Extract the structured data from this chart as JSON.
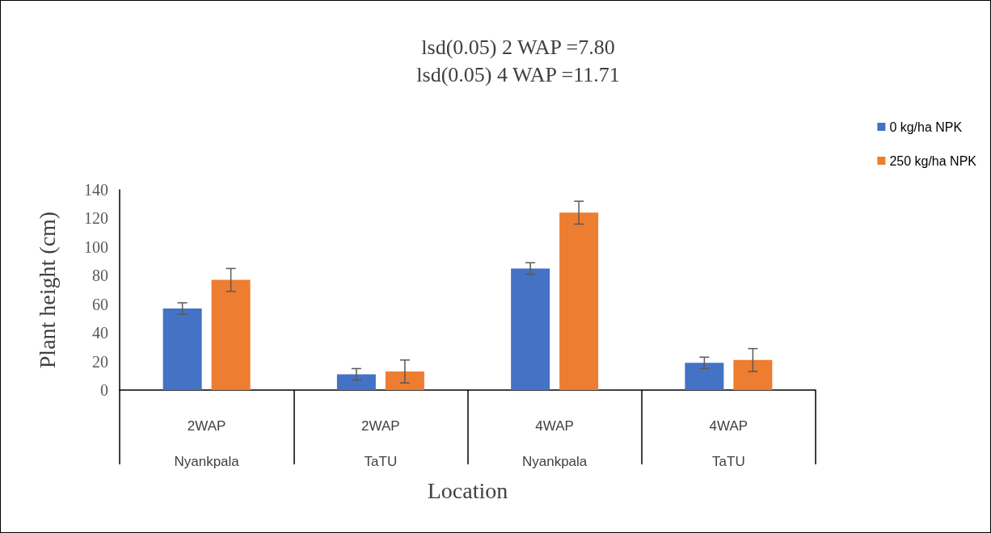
{
  "chart_data": {
    "type": "bar",
    "title": "lsd(0.05) 2 WAP =7.80\nlsd(0.05) 4 WAP =11.71",
    "xlabel": "Location",
    "ylabel": "Plant height (cm)",
    "categories": [
      "2WAP\nNyankpala",
      "2WAP\nTaTU",
      "4WAP\nNyankpala",
      "4WAP\nTaTU"
    ],
    "series": [
      {
        "name": "0 kg/ha NPK",
        "color": "#4472c4",
        "values": [
          57,
          11,
          85,
          19
        ],
        "errors": [
          4,
          4,
          4,
          4
        ]
      },
      {
        "name": "250 kg/ha NPK",
        "color": "#ed7d31",
        "values": [
          77,
          13,
          124,
          21
        ],
        "errors": [
          8,
          8,
          8,
          8
        ]
      }
    ],
    "ylim": [
      0,
      140
    ],
    "yticks": [
      0,
      20,
      40,
      60,
      80,
      100,
      120,
      140
    ],
    "grid": false,
    "legend": "top right"
  }
}
